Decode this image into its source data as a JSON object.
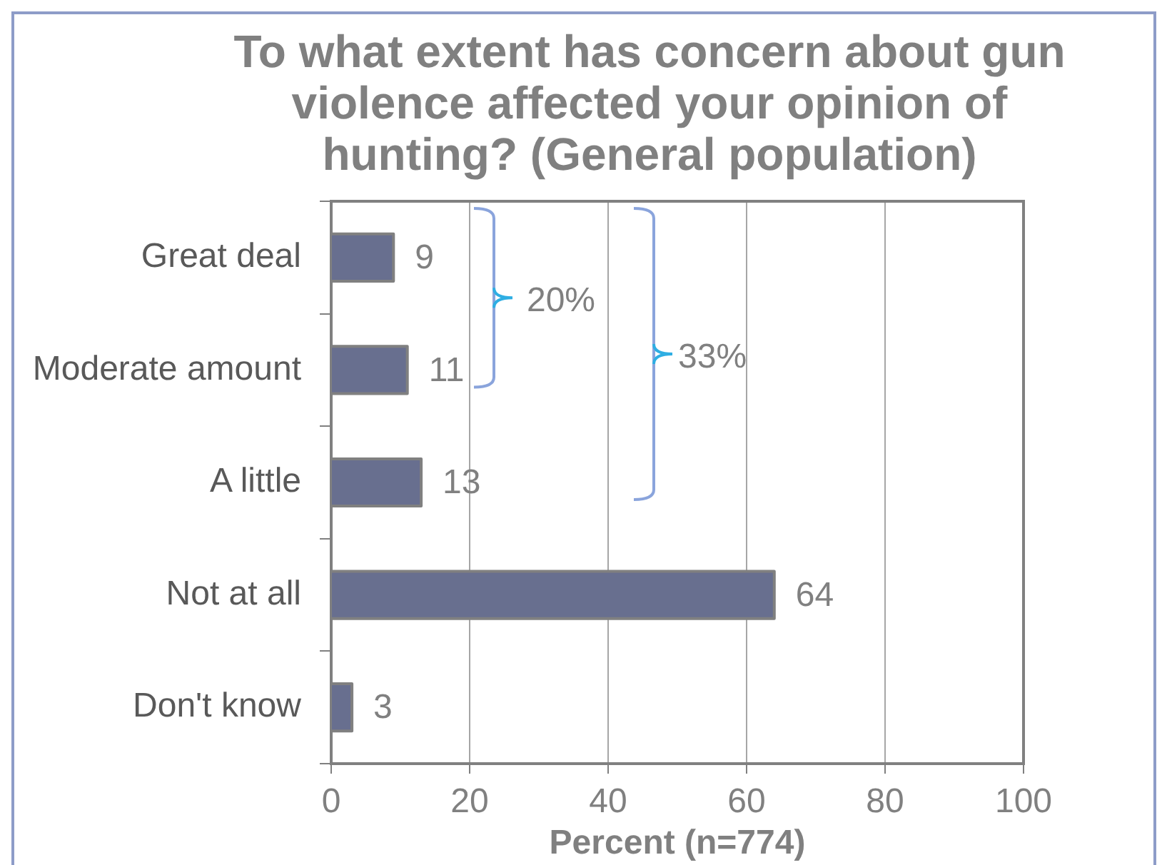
{
  "chart_data": {
    "type": "bar",
    "orientation": "horizontal",
    "title": "To what extent has concern about gun violence affected your opinion of hunting? (General population)",
    "xlabel": "Percent (n=774)",
    "categories": [
      "Great deal",
      "Moderate amount",
      "A little",
      "Not at all",
      "Don't know"
    ],
    "values": [
      9,
      11,
      13,
      64,
      3
    ],
    "color": "#686f8f",
    "xlim": [
      0,
      100
    ],
    "xticks": [
      0,
      20,
      40,
      60,
      80,
      100
    ],
    "grid": "x",
    "data_labels": true,
    "annotations": [
      "20%",
      "33%"
    ]
  }
}
